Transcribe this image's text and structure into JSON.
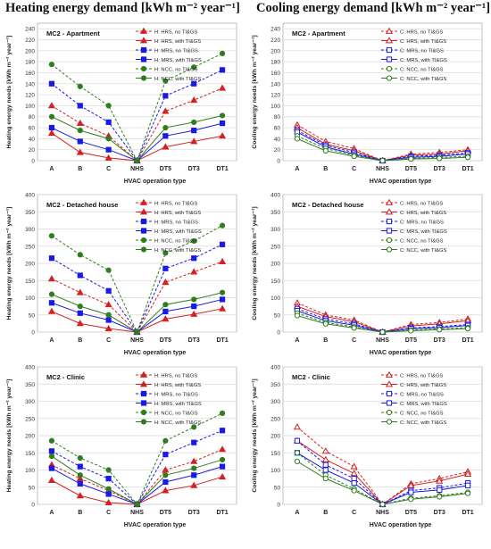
{
  "titles": {
    "heating": "Heating energy demand [kWh m⁻² year⁻¹]",
    "cooling": "Cooling energy demand [kWh m⁻² year⁻¹]"
  },
  "chart_data": [
    {
      "type": "line",
      "title": "MC2 - Apartment",
      "xlabel": "HVAC operation type",
      "ylabel": "Heating energy needs [kWh m⁻² year⁻¹]",
      "categories": [
        "A",
        "B",
        "C",
        "NHS",
        "DT5",
        "DT3",
        "DT1"
      ],
      "ylim": [
        0,
        250
      ],
      "yticks": [
        0,
        20,
        40,
        60,
        80,
        100,
        120,
        140,
        160,
        180,
        200,
        220,
        240
      ],
      "grid": true,
      "legend": "top-right",
      "series": [
        {
          "name": "H: HRS, no TI&GS",
          "color": "#d42020",
          "dash": true,
          "marker": "triangle",
          "values": [
            100,
            68,
            45,
            0,
            90,
            110,
            132
          ]
        },
        {
          "name": "H: HRS, with TI&GS",
          "color": "#d42020",
          "dash": false,
          "marker": "triangle",
          "values": [
            50,
            15,
            5,
            0,
            25,
            35,
            45
          ]
        },
        {
          "name": "H: MRS, no TI&GS",
          "color": "#1a1ae6",
          "dash": true,
          "marker": "square",
          "values": [
            140,
            100,
            70,
            0,
            118,
            140,
            165
          ]
        },
        {
          "name": "H: MRS, with TI&GS",
          "color": "#1a1ae6",
          "dash": false,
          "marker": "square",
          "values": [
            60,
            35,
            20,
            0,
            45,
            55,
            68
          ]
        },
        {
          "name": "H: NCC, no TI&GS",
          "color": "#2e7d1e",
          "dash": true,
          "marker": "circle",
          "values": [
            175,
            135,
            100,
            0,
            145,
            170,
            195
          ]
        },
        {
          "name": "H: NCC, with TI&GS",
          "color": "#2e7d1e",
          "dash": false,
          "marker": "circle",
          "values": [
            80,
            55,
            40,
            0,
            60,
            70,
            82
          ]
        }
      ]
    },
    {
      "type": "line",
      "title": "MC2 - Apartment",
      "xlabel": "HVAC operation type",
      "ylabel": "Cooling energy needs [kWh m⁻² year⁻¹]",
      "categories": [
        "A",
        "B",
        "C",
        "NHS",
        "DT5",
        "DT3",
        "DT1"
      ],
      "ylim": [
        0,
        250
      ],
      "yticks": [
        0,
        20,
        40,
        60,
        80,
        100,
        120,
        140,
        160,
        180,
        200,
        220,
        240
      ],
      "grid": true,
      "legend": "top-right",
      "series": [
        {
          "name": "C: HRS, no TI&GS",
          "color": "#d42020",
          "dash": true,
          "marker": "triangle-open",
          "values": [
            65,
            35,
            22,
            0,
            12,
            15,
            20
          ]
        },
        {
          "name": "C: HRS, with TI&GS",
          "color": "#d42020",
          "dash": false,
          "marker": "triangle-open",
          "values": [
            60,
            30,
            18,
            0,
            10,
            12,
            18
          ]
        },
        {
          "name": "C: MRS, no TI&GS",
          "color": "#1a1ae6",
          "dash": true,
          "marker": "square-open",
          "values": [
            55,
            28,
            15,
            0,
            8,
            10,
            14
          ]
        },
        {
          "name": "C: MRS, with TI&GS",
          "color": "#1a1ae6",
          "dash": false,
          "marker": "square-open",
          "values": [
            52,
            25,
            12,
            0,
            6,
            8,
            12
          ]
        },
        {
          "name": "C: NCC, no TI&GS",
          "color": "#2e7d1e",
          "dash": true,
          "marker": "circle-open",
          "values": [
            45,
            22,
            10,
            0,
            4,
            6,
            8
          ]
        },
        {
          "name": "C: NCC, with TI&GS",
          "color": "#2e7d1e",
          "dash": false,
          "marker": "circle-open",
          "values": [
            40,
            18,
            8,
            0,
            3,
            4,
            6
          ]
        }
      ]
    },
    {
      "type": "line",
      "title": "MC2 - Detached house",
      "xlabel": "HVAC operation type",
      "ylabel": "Heating energy needs [kWh m⁻² year⁻¹]",
      "categories": [
        "A",
        "B",
        "C",
        "NHS",
        "DT5",
        "DT3",
        "DT1"
      ],
      "ylim": [
        0,
        400
      ],
      "yticks": [
        0,
        50,
        100,
        150,
        200,
        250,
        300,
        350,
        400
      ],
      "grid": true,
      "legend": "top-right",
      "series": [
        {
          "name": "H: HRS, no TI&GS",
          "color": "#d42020",
          "dash": true,
          "marker": "triangle",
          "values": [
            155,
            115,
            80,
            0,
            145,
            175,
            205
          ]
        },
        {
          "name": "H: HRS, with TI&GS",
          "color": "#d42020",
          "dash": false,
          "marker": "triangle",
          "values": [
            60,
            25,
            10,
            0,
            38,
            52,
            68
          ]
        },
        {
          "name": "H: MRS, no TI&GS",
          "color": "#1a1ae6",
          "dash": true,
          "marker": "square",
          "values": [
            215,
            165,
            120,
            0,
            185,
            215,
            255
          ]
        },
        {
          "name": "H: MRS, with TI&GS",
          "color": "#1a1ae6",
          "dash": false,
          "marker": "square",
          "values": [
            85,
            55,
            35,
            0,
            60,
            75,
            95
          ]
        },
        {
          "name": "H: NCC, no TI&GS",
          "color": "#2e7d1e",
          "dash": true,
          "marker": "circle",
          "values": [
            280,
            225,
            180,
            0,
            230,
            265,
            310
          ]
        },
        {
          "name": "H: NCC, with TI&GS",
          "color": "#2e7d1e",
          "dash": false,
          "marker": "circle",
          "values": [
            110,
            75,
            50,
            0,
            80,
            95,
            115
          ]
        }
      ]
    },
    {
      "type": "line",
      "title": "MC2 - Detached house",
      "xlabel": "HVAC operation type",
      "ylabel": "Cooling energy needs [kWh m⁻² year⁻¹]",
      "categories": [
        "A",
        "B",
        "C",
        "NHS",
        "DT5",
        "DT3",
        "DT1"
      ],
      "ylim": [
        0,
        400
      ],
      "yticks": [
        0,
        50,
        100,
        150,
        200,
        250,
        300,
        350,
        400
      ],
      "grid": true,
      "legend": "top-right",
      "series": [
        {
          "name": "C: HRS, no TI&GS",
          "color": "#d42020",
          "dash": true,
          "marker": "triangle-open",
          "values": [
            85,
            50,
            35,
            0,
            22,
            28,
            38
          ]
        },
        {
          "name": "C: HRS, with TI&GS",
          "color": "#d42020",
          "dash": false,
          "marker": "triangle-open",
          "values": [
            75,
            45,
            30,
            0,
            18,
            24,
            33
          ]
        },
        {
          "name": "C: MRS, no TI&GS",
          "color": "#1a1ae6",
          "dash": true,
          "marker": "square-open",
          "values": [
            68,
            38,
            24,
            0,
            12,
            16,
            22
          ]
        },
        {
          "name": "C: MRS, with TI&GS",
          "color": "#1a1ae6",
          "dash": false,
          "marker": "square-open",
          "values": [
            62,
            33,
            20,
            0,
            10,
            13,
            19
          ]
        },
        {
          "name": "C: NCC, no TI&GS",
          "color": "#2e7d1e",
          "dash": true,
          "marker": "circle-open",
          "values": [
            55,
            28,
            15,
            0,
            6,
            9,
            13
          ]
        },
        {
          "name": "C: NCC, with TI&GS",
          "color": "#2e7d1e",
          "dash": false,
          "marker": "circle-open",
          "values": [
            48,
            24,
            12,
            0,
            4,
            7,
            10
          ]
        }
      ]
    },
    {
      "type": "line",
      "title": "MC2 - Clinic",
      "xlabel": "HVAC operation type",
      "ylabel": "Heating energy needs [kWh m⁻² year⁻¹]",
      "categories": [
        "A",
        "B",
        "C",
        "NHS",
        "DT5",
        "DT3",
        "DT1"
      ],
      "ylim": [
        0,
        400
      ],
      "yticks": [
        0,
        50,
        100,
        150,
        200,
        250,
        300,
        350,
        400
      ],
      "grid": true,
      "legend": "top-right",
      "series": [
        {
          "name": "H: HRS, no TI&GS",
          "color": "#d42020",
          "dash": true,
          "marker": "triangle",
          "values": [
            115,
            75,
            40,
            0,
            100,
            125,
            160
          ]
        },
        {
          "name": "H: HRS, with TI&GS",
          "color": "#d42020",
          "dash": false,
          "marker": "triangle",
          "values": [
            70,
            25,
            5,
            0,
            40,
            55,
            80
          ]
        },
        {
          "name": "H: MRS, no TI&GS",
          "color": "#1a1ae6",
          "dash": true,
          "marker": "square",
          "values": [
            155,
            110,
            75,
            0,
            145,
            180,
            215
          ]
        },
        {
          "name": "H: MRS, with TI&GS",
          "color": "#1a1ae6",
          "dash": false,
          "marker": "square",
          "values": [
            105,
            60,
            30,
            0,
            65,
            85,
            110
          ]
        },
        {
          "name": "H: NCC, no TI&GS",
          "color": "#2e7d1e",
          "dash": true,
          "marker": "circle",
          "values": [
            185,
            135,
            100,
            0,
            185,
            225,
            265
          ]
        },
        {
          "name": "H: NCC, with TI&GS",
          "color": "#2e7d1e",
          "dash": false,
          "marker": "circle",
          "values": [
            140,
            85,
            45,
            0,
            85,
            105,
            130
          ]
        }
      ]
    },
    {
      "type": "line",
      "title": "MC2 - Clinic",
      "xlabel": "HVAC operation type",
      "ylabel": "Cooling energy needs [kWh m⁻² year⁻¹]",
      "categories": [
        "A",
        "B",
        "C",
        "NHS",
        "DT5",
        "DT3",
        "DT1"
      ],
      "ylim": [
        0,
        400
      ],
      "yticks": [
        0,
        50,
        100,
        150,
        200,
        250,
        300,
        350,
        400
      ],
      "grid": true,
      "legend": "top-right",
      "series": [
        {
          "name": "C: HRS, no TI&GS",
          "color": "#d42020",
          "dash": true,
          "marker": "triangle-open",
          "values": [
            225,
            155,
            110,
            0,
            60,
            75,
            95
          ]
        },
        {
          "name": "C: HRS, with TI&GS",
          "color": "#d42020",
          "dash": false,
          "marker": "triangle-open",
          "values": [
            185,
            130,
            90,
            0,
            55,
            68,
            88
          ]
        },
        {
          "name": "C: MRS, no TI&GS",
          "color": "#1a1ae6",
          "dash": true,
          "marker": "square-open",
          "values": [
            185,
            115,
            75,
            0,
            40,
            48,
            62
          ]
        },
        {
          "name": "C: MRS, with TI&GS",
          "color": "#1a1ae6",
          "dash": false,
          "marker": "square-open",
          "values": [
            150,
            100,
            62,
            0,
            35,
            42,
            55
          ]
        },
        {
          "name": "C: NCC, no TI&GS",
          "color": "#2e7d1e",
          "dash": true,
          "marker": "circle-open",
          "values": [
            150,
            85,
            45,
            0,
            18,
            25,
            35
          ]
        },
        {
          "name": "C: NCC, with TI&GS",
          "color": "#2e7d1e",
          "dash": false,
          "marker": "circle-open",
          "values": [
            125,
            75,
            40,
            0,
            15,
            22,
            32
          ]
        }
      ]
    }
  ]
}
